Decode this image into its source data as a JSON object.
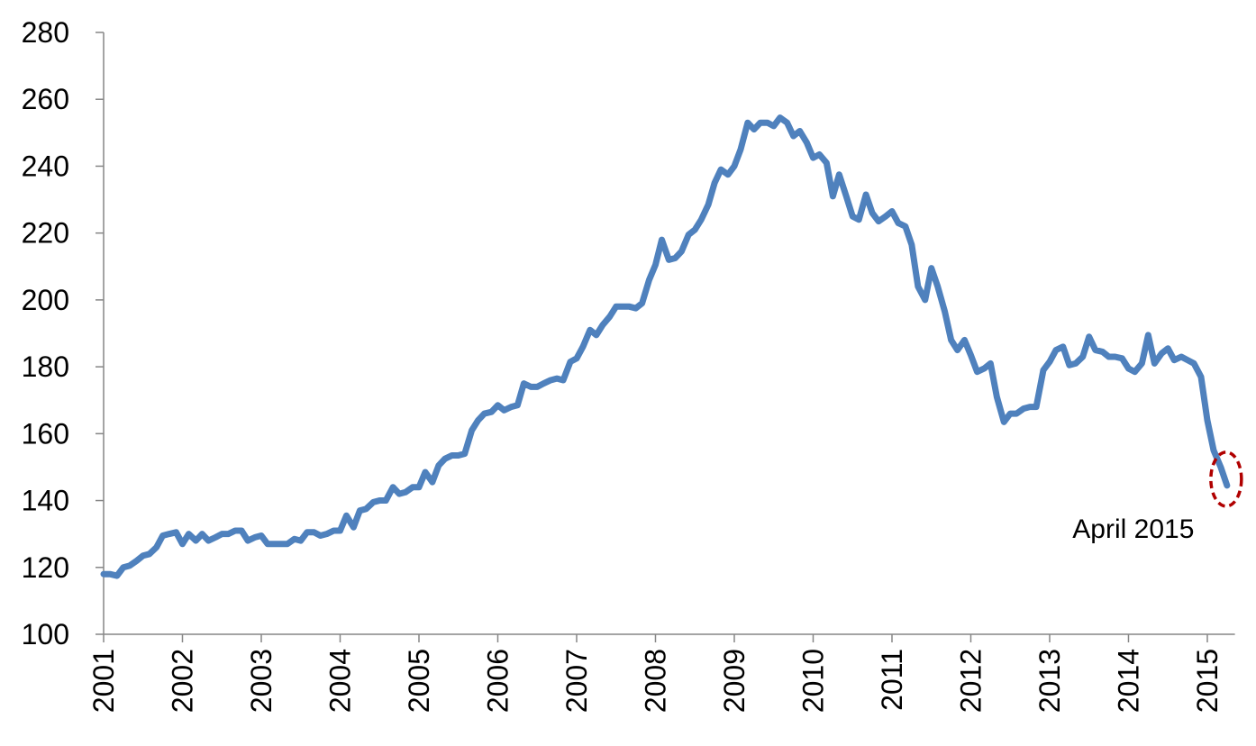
{
  "chart_data": {
    "type": "line",
    "x": [
      2001.0,
      2001.08,
      2001.17,
      2001.25,
      2001.33,
      2001.42,
      2001.5,
      2001.58,
      2001.67,
      2001.75,
      2001.83,
      2001.92,
      2002.0,
      2002.08,
      2002.17,
      2002.25,
      2002.33,
      2002.42,
      2002.5,
      2002.58,
      2002.67,
      2002.75,
      2002.83,
      2002.92,
      2003.0,
      2003.08,
      2003.17,
      2003.25,
      2003.33,
      2003.42,
      2003.5,
      2003.58,
      2003.67,
      2003.75,
      2003.83,
      2003.92,
      2004.0,
      2004.08,
      2004.17,
      2004.25,
      2004.33,
      2004.42,
      2004.5,
      2004.58,
      2004.67,
      2004.75,
      2004.83,
      2004.92,
      2005.0,
      2005.08,
      2005.17,
      2005.25,
      2005.33,
      2005.42,
      2005.5,
      2005.58,
      2005.67,
      2005.75,
      2005.83,
      2005.92,
      2006.0,
      2006.08,
      2006.17,
      2006.25,
      2006.33,
      2006.42,
      2006.5,
      2006.58,
      2006.67,
      2006.75,
      2006.83,
      2006.92,
      2007.0,
      2007.08,
      2007.17,
      2007.25,
      2007.33,
      2007.42,
      2007.5,
      2007.58,
      2007.67,
      2007.75,
      2007.83,
      2007.92,
      2008.0,
      2008.08,
      2008.17,
      2008.25,
      2008.33,
      2008.42,
      2008.5,
      2008.58,
      2008.67,
      2008.75,
      2008.83,
      2008.92,
      2009.0,
      2009.08,
      2009.17,
      2009.25,
      2009.33,
      2009.42,
      2009.5,
      2009.58,
      2009.67,
      2009.75,
      2009.83,
      2009.92,
      2010.0,
      2010.08,
      2010.17,
      2010.25,
      2010.33,
      2010.42,
      2010.5,
      2010.58,
      2010.67,
      2010.75,
      2010.83,
      2010.92,
      2011.0,
      2011.08,
      2011.17,
      2011.25,
      2011.33,
      2011.42,
      2011.5,
      2011.58,
      2011.67,
      2011.75,
      2011.83,
      2011.92,
      2012.0,
      2012.08,
      2012.17,
      2012.25,
      2012.33,
      2012.42,
      2012.5,
      2012.58,
      2012.67,
      2012.75,
      2012.83,
      2012.92,
      2013.0,
      2013.08,
      2013.17,
      2013.25,
      2013.33,
      2013.42,
      2013.5,
      2013.58,
      2013.67,
      2013.75,
      2013.83,
      2013.92,
      2014.0,
      2014.08,
      2014.17,
      2014.25,
      2014.33,
      2014.42,
      2014.5,
      2014.58,
      2014.67,
      2014.75,
      2014.83,
      2014.92,
      2015.0,
      2015.08,
      2015.17,
      2015.25
    ],
    "values": [
      118,
      118,
      117.5,
      120,
      120.5,
      122,
      123.5,
      124,
      126,
      129.5,
      130,
      130.5,
      127,
      130,
      128,
      130,
      128,
      129,
      130,
      130,
      131,
      131,
      128,
      129,
      129.5,
      127,
      127,
      127,
      127,
      128.5,
      128,
      130.5,
      130.5,
      129.5,
      130,
      131,
      131,
      135.5,
      132,
      137,
      137.5,
      139.5,
      140,
      140,
      144,
      142,
      142.5,
      144,
      144,
      148.5,
      145.5,
      150.5,
      152.5,
      153.5,
      153.5,
      154,
      161,
      164,
      166,
      166.5,
      168.5,
      167,
      168,
      168.5,
      175,
      174,
      174,
      175,
      176,
      176.5,
      176,
      181.5,
      182.5,
      186,
      191,
      189.5,
      192.5,
      195,
      198,
      198,
      198,
      197.5,
      199,
      206,
      210.5,
      218,
      212,
      212.5,
      214.5,
      219.5,
      221,
      224,
      228.5,
      235,
      239,
      237.5,
      240,
      245,
      253,
      251,
      253,
      253,
      252,
      254.5,
      253,
      249,
      250.5,
      247,
      242.5,
      243.5,
      241,
      231,
      237.5,
      231,
      225,
      224,
      231.5,
      226,
      223.5,
      225,
      226.5,
      223,
      222,
      216.5,
      204,
      200,
      209.5,
      204,
      196.5,
      188,
      185,
      188,
      183.5,
      178.5,
      179.5,
      181,
      171,
      163.5,
      166,
      166,
      167.5,
      168,
      168,
      179,
      181.5,
      185,
      186,
      180.5,
      181,
      183,
      189,
      185,
      184.5,
      183,
      183,
      182.5,
      179.5,
      178.5,
      181,
      189.5,
      181,
      184,
      185.5,
      182,
      183,
      182,
      181,
      177,
      164,
      155,
      150,
      144.5
    ],
    "color": "#4f81bd",
    "xlim": [
      2001,
      2015.35
    ],
    "xticks": [
      2001,
      2002,
      2003,
      2004,
      2005,
      2006,
      2007,
      2008,
      2009,
      2010,
      2011,
      2012,
      2013,
      2014,
      2015
    ],
    "ylim": [
      100,
      280
    ],
    "yticks": [
      100,
      120,
      140,
      160,
      180,
      200,
      220,
      240,
      260,
      280
    ],
    "grid": false,
    "annotation": "April 2015",
    "annotation_color": "#b00000"
  }
}
